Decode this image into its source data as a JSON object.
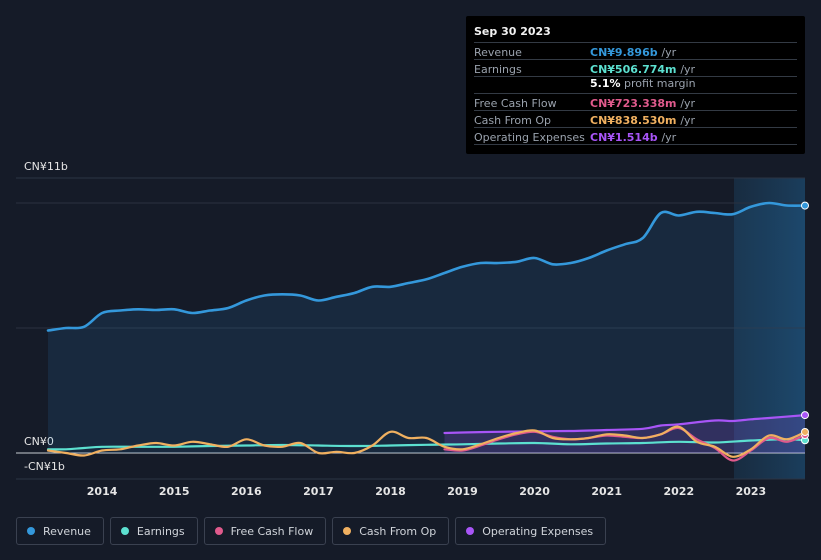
{
  "tooltip": {
    "date": "Sep 30 2023",
    "rows": [
      {
        "label": "Revenue",
        "value": "CN¥9.896b",
        "unit": "/yr",
        "color": "#3498db"
      },
      {
        "label": "Earnings",
        "value": "CN¥506.774m",
        "unit": "/yr",
        "color": "#5ce0d0"
      },
      {
        "label": "Free Cash Flow",
        "value": "CN¥723.338m",
        "unit": "/yr",
        "color": "#e05a8c"
      },
      {
        "label": "Cash From Op",
        "value": "CN¥838.530m",
        "unit": "/yr",
        "color": "#f0b060"
      },
      {
        "label": "Operating Expenses",
        "value": "CN¥1.514b",
        "unit": "/yr",
        "color": "#a855f7"
      }
    ],
    "margin_value": "5.1%",
    "margin_label": "profit margin"
  },
  "legend": [
    {
      "label": "Revenue",
      "color": "#3498db"
    },
    {
      "label": "Earnings",
      "color": "#5ce0d0"
    },
    {
      "label": "Free Cash Flow",
      "color": "#e05a8c"
    },
    {
      "label": "Cash From Op",
      "color": "#f0b060"
    },
    {
      "label": "Operating Expenses",
      "color": "#a855f7"
    }
  ],
  "chart_data": {
    "type": "line",
    "y_axis_labels": {
      "top": "CN¥11b",
      "zero": "CN¥0",
      "bottom": "-CN¥1b"
    },
    "ylim": [
      -1,
      11
    ],
    "xlim": [
      2013.25,
      2023.75
    ],
    "x_ticks": [
      2014,
      2015,
      2016,
      2017,
      2018,
      2019,
      2020,
      2021,
      2022,
      2023
    ],
    "forecast_start": 2022.75,
    "series": [
      {
        "name": "Revenue",
        "color": "#3498db",
        "fill": true,
        "points": [
          [
            2013.25,
            4.9
          ],
          [
            2013.5,
            5.0
          ],
          [
            2013.75,
            5.05
          ],
          [
            2014.0,
            5.6
          ],
          [
            2014.25,
            5.7
          ],
          [
            2014.5,
            5.75
          ],
          [
            2014.75,
            5.72
          ],
          [
            2015.0,
            5.75
          ],
          [
            2015.25,
            5.6
          ],
          [
            2015.5,
            5.7
          ],
          [
            2015.75,
            5.8
          ],
          [
            2016.0,
            6.1
          ],
          [
            2016.25,
            6.3
          ],
          [
            2016.5,
            6.35
          ],
          [
            2016.75,
            6.3
          ],
          [
            2017.0,
            6.1
          ],
          [
            2017.25,
            6.25
          ],
          [
            2017.5,
            6.4
          ],
          [
            2017.75,
            6.65
          ],
          [
            2018.0,
            6.65
          ],
          [
            2018.25,
            6.8
          ],
          [
            2018.5,
            6.95
          ],
          [
            2018.75,
            7.2
          ],
          [
            2019.0,
            7.45
          ],
          [
            2019.25,
            7.6
          ],
          [
            2019.5,
            7.6
          ],
          [
            2019.75,
            7.65
          ],
          [
            2020.0,
            7.8
          ],
          [
            2020.25,
            7.55
          ],
          [
            2020.5,
            7.6
          ],
          [
            2020.75,
            7.8
          ],
          [
            2021.0,
            8.1
          ],
          [
            2021.25,
            8.35
          ],
          [
            2021.5,
            8.6
          ],
          [
            2021.75,
            9.6
          ],
          [
            2022.0,
            9.5
          ],
          [
            2022.25,
            9.65
          ],
          [
            2022.5,
            9.6
          ],
          [
            2022.75,
            9.55
          ],
          [
            2023.0,
            9.85
          ],
          [
            2023.25,
            10.0
          ],
          [
            2023.5,
            9.9
          ],
          [
            2023.75,
            9.896
          ]
        ]
      },
      {
        "name": "Earnings",
        "color": "#5ce0d0",
        "fill": false,
        "points": [
          [
            2013.25,
            0.15
          ],
          [
            2013.5,
            0.15
          ],
          [
            2013.75,
            0.2
          ],
          [
            2014.0,
            0.25
          ],
          [
            2014.5,
            0.25
          ],
          [
            2015.0,
            0.25
          ],
          [
            2015.5,
            0.28
          ],
          [
            2016.0,
            0.3
          ],
          [
            2016.5,
            0.32
          ],
          [
            2017.0,
            0.3
          ],
          [
            2017.5,
            0.28
          ],
          [
            2018.0,
            0.3
          ],
          [
            2018.5,
            0.33
          ],
          [
            2019.0,
            0.35
          ],
          [
            2019.5,
            0.38
          ],
          [
            2020.0,
            0.4
          ],
          [
            2020.5,
            0.35
          ],
          [
            2021.0,
            0.38
          ],
          [
            2021.5,
            0.4
          ],
          [
            2022.0,
            0.45
          ],
          [
            2022.5,
            0.42
          ],
          [
            2023.0,
            0.5
          ],
          [
            2023.5,
            0.55
          ],
          [
            2023.75,
            0.51
          ]
        ]
      },
      {
        "name": "Free Cash Flow",
        "color": "#e05a8c",
        "fill": false,
        "points": [
          [
            2018.75,
            0.15
          ],
          [
            2019.0,
            0.1
          ],
          [
            2019.25,
            0.3
          ],
          [
            2019.5,
            0.55
          ],
          [
            2019.75,
            0.75
          ],
          [
            2020.0,
            0.85
          ],
          [
            2020.25,
            0.65
          ],
          [
            2020.5,
            0.55
          ],
          [
            2020.75,
            0.6
          ],
          [
            2021.0,
            0.7
          ],
          [
            2021.25,
            0.65
          ],
          [
            2021.5,
            0.6
          ],
          [
            2021.75,
            0.75
          ],
          [
            2022.0,
            1.0
          ],
          [
            2022.25,
            0.55
          ],
          [
            2022.5,
            0.2
          ],
          [
            2022.75,
            -0.3
          ],
          [
            2023.0,
            0.1
          ],
          [
            2023.25,
            0.6
          ],
          [
            2023.5,
            0.45
          ],
          [
            2023.75,
            0.72
          ]
        ]
      },
      {
        "name": "Cash From Op",
        "color": "#f0b060",
        "fill": false,
        "points": [
          [
            2013.25,
            0.1
          ],
          [
            2013.5,
            0.0
          ],
          [
            2013.75,
            -0.1
          ],
          [
            2014.0,
            0.1
          ],
          [
            2014.25,
            0.15
          ],
          [
            2014.5,
            0.3
          ],
          [
            2014.75,
            0.4
          ],
          [
            2015.0,
            0.3
          ],
          [
            2015.25,
            0.45
          ],
          [
            2015.5,
            0.35
          ],
          [
            2015.75,
            0.25
          ],
          [
            2016.0,
            0.55
          ],
          [
            2016.25,
            0.3
          ],
          [
            2016.5,
            0.25
          ],
          [
            2016.75,
            0.4
          ],
          [
            2017.0,
            0.0
          ],
          [
            2017.25,
            0.05
          ],
          [
            2017.5,
            0.0
          ],
          [
            2017.75,
            0.3
          ],
          [
            2018.0,
            0.85
          ],
          [
            2018.25,
            0.6
          ],
          [
            2018.5,
            0.6
          ],
          [
            2018.75,
            0.25
          ],
          [
            2019.0,
            0.15
          ],
          [
            2019.25,
            0.35
          ],
          [
            2019.5,
            0.6
          ],
          [
            2019.75,
            0.8
          ],
          [
            2020.0,
            0.9
          ],
          [
            2020.25,
            0.6
          ],
          [
            2020.5,
            0.55
          ],
          [
            2020.75,
            0.6
          ],
          [
            2021.0,
            0.75
          ],
          [
            2021.25,
            0.7
          ],
          [
            2021.5,
            0.6
          ],
          [
            2021.75,
            0.75
          ],
          [
            2022.0,
            1.05
          ],
          [
            2022.25,
            0.45
          ],
          [
            2022.5,
            0.25
          ],
          [
            2022.75,
            -0.15
          ],
          [
            2023.0,
            0.15
          ],
          [
            2023.25,
            0.7
          ],
          [
            2023.5,
            0.55
          ],
          [
            2023.75,
            0.84
          ]
        ]
      },
      {
        "name": "Operating Expenses",
        "color": "#a855f7",
        "fill": true,
        "points": [
          [
            2018.75,
            0.8
          ],
          [
            2019.0,
            0.82
          ],
          [
            2019.5,
            0.85
          ],
          [
            2020.0,
            0.87
          ],
          [
            2020.5,
            0.88
          ],
          [
            2021.0,
            0.92
          ],
          [
            2021.5,
            0.97
          ],
          [
            2021.75,
            1.1
          ],
          [
            2022.0,
            1.15
          ],
          [
            2022.5,
            1.3
          ],
          [
            2022.75,
            1.28
          ],
          [
            2023.0,
            1.35
          ],
          [
            2023.25,
            1.4
          ],
          [
            2023.75,
            1.514
          ]
        ]
      }
    ]
  }
}
